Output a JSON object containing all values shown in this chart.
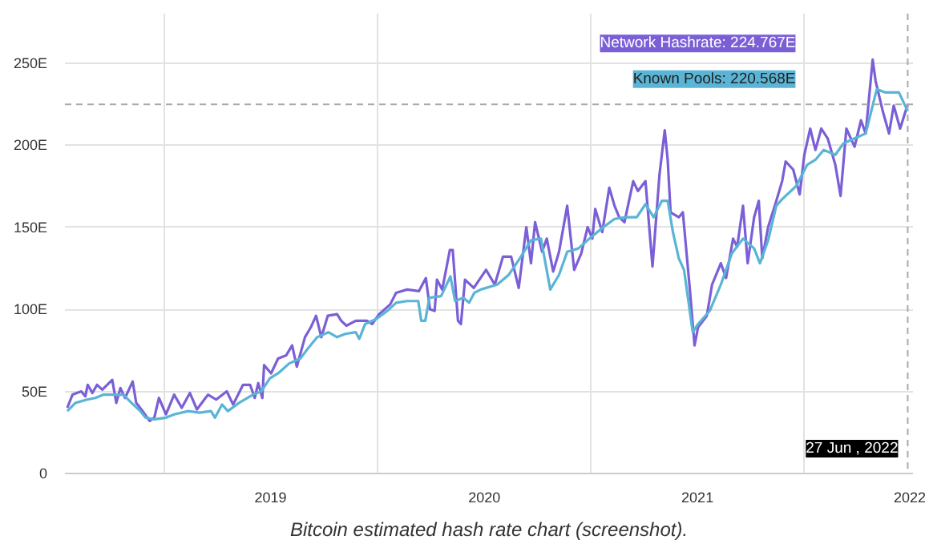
{
  "chart_data": {
    "type": "line",
    "series": [
      {
        "name": "Network Hashrate",
        "color": "#7b5fd6",
        "x": [
          "2018-07-19",
          "2018-07-28",
          "2018-08-12",
          "2018-08-19",
          "2018-08-23",
          "2018-08-31",
          "2018-09-08",
          "2018-09-17",
          "2018-10-04",
          "2018-10-11",
          "2018-10-18",
          "2018-10-26",
          "2018-11-08",
          "2018-11-14",
          "2018-11-25",
          "2018-12-07",
          "2018-12-15",
          "2018-12-23",
          "2019-01-04",
          "2019-01-18",
          "2019-01-31",
          "2019-02-14",
          "2019-02-26",
          "2019-03-17",
          "2019-03-31",
          "2019-04-18",
          "2019-04-29",
          "2019-05-16",
          "2019-05-28",
          "2019-06-05",
          "2019-06-11",
          "2019-06-18",
          "2019-06-21",
          "2019-07-03",
          "2019-07-15",
          "2019-07-29",
          "2019-08-08",
          "2019-08-16",
          "2019-08-30",
          "2019-09-09",
          "2019-09-18",
          "2019-09-27",
          "2019-10-08",
          "2019-10-24",
          "2019-10-31",
          "2019-11-09",
          "2019-11-25",
          "2019-12-14",
          "2019-12-23",
          "2020-01-04",
          "2020-01-23",
          "2020-02-02",
          "2020-02-21",
          "2020-03-12",
          "2020-03-24",
          "2020-03-31",
          "2020-04-08",
          "2020-04-12",
          "2020-04-21",
          "2020-05-04",
          "2020-05-09",
          "2020-05-18",
          "2020-05-23",
          "2020-05-30",
          "2020-06-14",
          "2020-07-05",
          "2020-07-20",
          "2020-08-03",
          "2020-08-17",
          "2020-08-30",
          "2020-09-12",
          "2020-09-20",
          "2020-09-27",
          "2020-10-09",
          "2020-10-17",
          "2020-10-28",
          "2020-11-07",
          "2020-11-21",
          "2020-12-03",
          "2020-12-15",
          "2020-12-26",
          "2021-01-03",
          "2021-01-08",
          "2021-01-20",
          "2021-02-01",
          "2021-02-10",
          "2021-02-18",
          "2021-02-27",
          "2021-03-14",
          "2021-03-22",
          "2021-04-04",
          "2021-04-16",
          "2021-04-28",
          "2021-05-07",
          "2021-05-12",
          "2021-05-17",
          "2021-05-31",
          "2021-06-07",
          "2021-06-19",
          "2021-06-27",
          "2021-07-03",
          "2021-07-18",
          "2021-07-27",
          "2021-08-11",
          "2021-08-20",
          "2021-09-01",
          "2021-09-08",
          "2021-09-18",
          "2021-09-26",
          "2021-10-07",
          "2021-10-15",
          "2021-10-21",
          "2021-10-31",
          "2021-11-14",
          "2021-11-24",
          "2021-11-30",
          "2021-12-13",
          "2021-12-24",
          "2022-01-01",
          "2022-01-11",
          "2022-01-20",
          "2022-01-30",
          "2022-02-10",
          "2022-02-23",
          "2022-03-04",
          "2022-03-14",
          "2022-03-28",
          "2022-04-08",
          "2022-04-16",
          "2022-04-28",
          "2022-05-03",
          "2022-05-15",
          "2022-05-26",
          "2022-06-03",
          "2022-06-14",
          "2022-06-27"
        ],
        "values": [
          40,
          48,
          50,
          47,
          54,
          49,
          54,
          51,
          57,
          43,
          52,
          46,
          56,
          43,
          38,
          32,
          34,
          46,
          36,
          48,
          40,
          49,
          39,
          48,
          45,
          50,
          42,
          54,
          54,
          46,
          55,
          46,
          66,
          61,
          70,
          72,
          78,
          65,
          83,
          89,
          96,
          83,
          96,
          97,
          93,
          90,
          93,
          93,
          91,
          97,
          103,
          110,
          112,
          111,
          119,
          100,
          99,
          118,
          112,
          136,
          136,
          93,
          91,
          118,
          113,
          124,
          115,
          132,
          132,
          113,
          150,
          128,
          153,
          135,
          143,
          123,
          135,
          163,
          124,
          134,
          150,
          143,
          161,
          147,
          174,
          163,
          156,
          153,
          178,
          172,
          178,
          126,
          182,
          209,
          191,
          159,
          156,
          159,
          112,
          78,
          89,
          96,
          115,
          128,
          119,
          143,
          138,
          163,
          128,
          156,
          166,
          131,
          150,
          166,
          178,
          190,
          185,
          170,
          194,
          210,
          197,
          210,
          204,
          188,
          169,
          210,
          199,
          215,
          207,
          252,
          239,
          221,
          207,
          224,
          210,
          224.767
        ],
        "value_labels": [
          null,
          null,
          null,
          null,
          null,
          null,
          null,
          null,
          null,
          null,
          null,
          null,
          null,
          null,
          null,
          null,
          null,
          null,
          null,
          null,
          null,
          null,
          null,
          null,
          null,
          null,
          null,
          null,
          null,
          null,
          null,
          null,
          null,
          null,
          null,
          null,
          null,
          null,
          null,
          null,
          null,
          null,
          null,
          null,
          null,
          null,
          null,
          null,
          null,
          null,
          null,
          null,
          null,
          null,
          null,
          null,
          null,
          null,
          null,
          null,
          null,
          null,
          null,
          null,
          null,
          null,
          null,
          null,
          null,
          null,
          null,
          null,
          null,
          null,
          null,
          null,
          null,
          null,
          null,
          null,
          null,
          null,
          null,
          null,
          null,
          null,
          null,
          null,
          null,
          null,
          null,
          null,
          null,
          null,
          null,
          null,
          null,
          null,
          null,
          null,
          null,
          null,
          null,
          null,
          null,
          null,
          null,
          null,
          null,
          null,
          null,
          null,
          null,
          null,
          null,
          null,
          null,
          null,
          null,
          null,
          null,
          null,
          null,
          null,
          null,
          null,
          null,
          null,
          null,
          null,
          null,
          null,
          null,
          null,
          null,
          ": 224.767E"
        ]
      },
      {
        "name": "Known Pools",
        "color": "#5ab4d6",
        "x": [
          "2018-07-19",
          "2018-08-02",
          "2018-08-22",
          "2018-09-05",
          "2018-09-19",
          "2018-10-08",
          "2018-10-23",
          "2018-11-06",
          "2018-11-21",
          "2018-11-30",
          "2018-12-15",
          "2019-01-04",
          "2019-01-18",
          "2019-02-11",
          "2019-03-03",
          "2019-03-22",
          "2019-03-29",
          "2019-04-10",
          "2019-04-20",
          "2019-05-09",
          "2019-06-02",
          "2019-06-16",
          "2019-07-01",
          "2019-07-15",
          "2019-08-03",
          "2019-08-22",
          "2019-09-06",
          "2019-09-20",
          "2019-10-09",
          "2019-10-24",
          "2019-11-07",
          "2019-11-25",
          "2019-12-01",
          "2019-12-11",
          "2019-12-30",
          "2020-01-18",
          "2020-02-02",
          "2020-02-21",
          "2020-03-11",
          "2020-03-16",
          "2020-03-23",
          "2020-03-30",
          "2020-04-19",
          "2020-05-05",
          "2020-05-13",
          "2020-05-27",
          "2020-06-06",
          "2020-06-15",
          "2020-06-26",
          "2020-07-24",
          "2020-08-13",
          "2020-09-01",
          "2020-09-20",
          "2020-10-07",
          "2020-10-23",
          "2020-11-07",
          "2020-11-21",
          "2020-12-10",
          "2020-12-29",
          "2021-01-22",
          "2021-02-10",
          "2021-03-01",
          "2021-03-20",
          "2021-04-04",
          "2021-04-18",
          "2021-05-02",
          "2021-05-12",
          "2021-05-21",
          "2021-05-31",
          "2021-06-09",
          "2021-06-24",
          "2021-07-03",
          "2021-07-23",
          "2021-08-11",
          "2021-08-30",
          "2021-09-18",
          "2021-10-07",
          "2021-10-17",
          "2021-10-31",
          "2021-11-14",
          "2021-11-24",
          "2021-12-18",
          "2022-01-06",
          "2022-01-20",
          "2022-02-03",
          "2022-02-23",
          "2022-03-09",
          "2022-03-28",
          "2022-04-16",
          "2022-05-05",
          "2022-05-20",
          "2022-06-12",
          "2022-06-27"
        ],
        "values": [
          38,
          43,
          45,
          46,
          48,
          48,
          48,
          43,
          38,
          34,
          33,
          34,
          36,
          38,
          37,
          38,
          34,
          42,
          38,
          43,
          48,
          50,
          58,
          61,
          67,
          70,
          77,
          83,
          86,
          83,
          85,
          86,
          82,
          91,
          94,
          99,
          104,
          105,
          105,
          93,
          93,
          107,
          108,
          120,
          105,
          107,
          104,
          110,
          112,
          115,
          121,
          131,
          142,
          143,
          112,
          121,
          135,
          137,
          143,
          150,
          155,
          156,
          156,
          164,
          156,
          166,
          166,
          147,
          131,
          124,
          86,
          91,
          99,
          115,
          134,
          143,
          137,
          128,
          142,
          163,
          167,
          175,
          188,
          191,
          197,
          194,
          201,
          204,
          207,
          234,
          232,
          232,
          220.568
        ],
        "value_labels": [
          null,
          null,
          null,
          null,
          null,
          null,
          null,
          null,
          null,
          null,
          null,
          null,
          null,
          null,
          null,
          null,
          null,
          null,
          null,
          null,
          null,
          null,
          null,
          null,
          null,
          null,
          null,
          null,
          null,
          null,
          null,
          null,
          null,
          null,
          null,
          null,
          null,
          null,
          null,
          null,
          null,
          null,
          null,
          null,
          null,
          null,
          null,
          null,
          null,
          null,
          null,
          null,
          null,
          null,
          null,
          null,
          null,
          null,
          null,
          null,
          null,
          null,
          null,
          null,
          null,
          null,
          null,
          null,
          null,
          null,
          null,
          null,
          null,
          null,
          null,
          null,
          null,
          null,
          null,
          null,
          null,
          null,
          null,
          null,
          null,
          null,
          null,
          null,
          null,
          null,
          null,
          null,
          ": 220.568E"
        ]
      }
    ],
    "xlim": [
      "2018-07-15",
      "2022-07-06"
    ],
    "xticks": [
      {
        "value": "2019-01-01",
        "label": null
      },
      {
        "value": "2019-07-02",
        "label": "2019"
      },
      {
        "value": "2020-01-01",
        "label": null
      },
      {
        "value": "2020-07-02",
        "label": "2020"
      },
      {
        "value": "2021-01-01",
        "label": null
      },
      {
        "value": "2021-07-02",
        "label": "2021"
      },
      {
        "value": "2022-01-01",
        "label": null
      },
      {
        "value": "2022-07-02",
        "label": "2022"
      }
    ],
    "ylim": [
      0,
      280
    ],
    "yticks": [
      0,
      {
        "value": 50,
        "label": "50E"
      },
      {
        "value": 100,
        "label": "100E"
      },
      {
        "value": 150,
        "label": "150E"
      },
      {
        "value": 200,
        "label": "200E"
      },
      {
        "value": 250,
        "label": "250E"
      }
    ],
    "grid": true,
    "marker": "none",
    "line_style": "solid",
    "ref_lines": [
      {
        "axis": "y",
        "value": 224.767,
        "color": "#aaaaaa",
        "line_style": "dashed"
      },
      {
        "axis": "x",
        "value": "2022-06-27",
        "color": "#aaaaaa",
        "line_style": "dashed"
      }
    ],
    "annotations": [
      {
        "text": "27 Jun , 2022",
        "x": "2022-06-27",
        "y": 0
      },
      "Bitcoin estimated hash rate chart (screenshot)."
    ]
  }
}
